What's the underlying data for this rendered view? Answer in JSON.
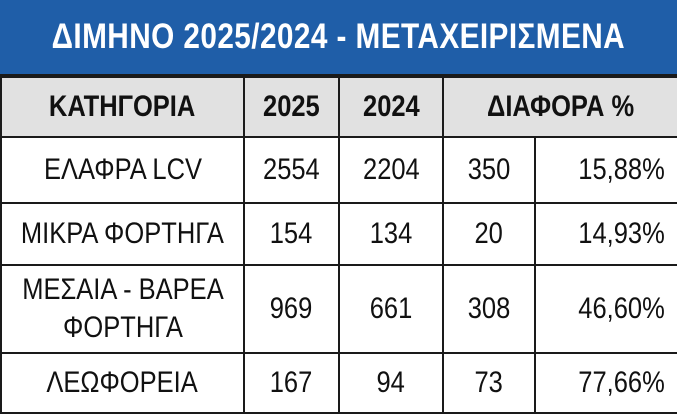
{
  "title": "ΔΙΜΗΝΟ 2025/2024 - ΜΕΤΑΧΕΙΡΙΣΜΕΝΑ",
  "headers": {
    "category": "ΚΑΤΗΓΟΡΙΑ",
    "y2025": "2025",
    "y2024": "2024",
    "diff": "ΔΙΑΦΟΡΑ %"
  },
  "rows": [
    {
      "category": "ΕΛΑΦΡΑ LCV",
      "y2025": "2554",
      "y2024": "2204",
      "diff": "350",
      "pct": "15,88%"
    },
    {
      "category": "ΜΙΚΡΑ ΦΟΡΤΗΓΑ",
      "y2025": "154",
      "y2024": "134",
      "diff": "20",
      "pct": "14,93%"
    },
    {
      "category": "ΜΕΣΑΙΑ - ΒΑΡΕΑ ΦΟΡΤΗΓΑ",
      "y2025": "969",
      "y2024": "661",
      "diff": "308",
      "pct": "46,60%"
    },
    {
      "category": "ΛΕΩΦΟΡΕΙΑ",
      "y2025": "167",
      "y2024": "94",
      "diff": "73",
      "pct": "77,66%"
    }
  ],
  "colors": {
    "title_bg": "#1f5ea8",
    "title_text": "#ffffff",
    "header_bg": "#e1e1e1",
    "border": "#1a1a1a"
  }
}
